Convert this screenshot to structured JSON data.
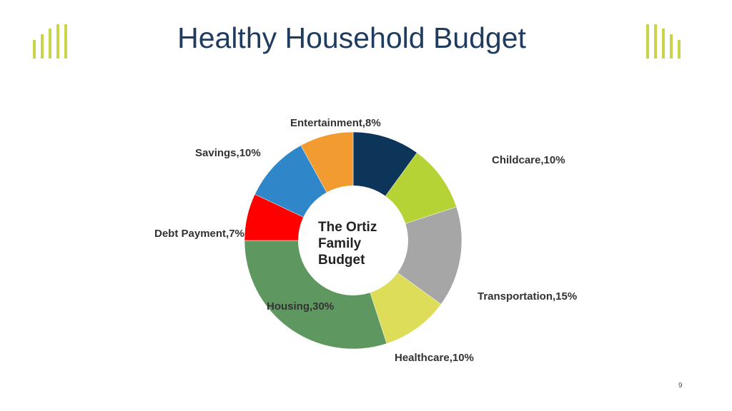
{
  "slide": {
    "title": "Healthy Household Budget",
    "page_number": "9",
    "accent_color": "#c8d44a",
    "title_color": "#1f3b5e"
  },
  "logo_icon": "bar-chart-logo-icon",
  "chart_data": {
    "type": "pie",
    "donut": true,
    "center_text": [
      "The Ortiz",
      "Family",
      "Budget"
    ],
    "slices": [
      {
        "label": "",
        "value": 10,
        "color": "#0d3459"
      },
      {
        "label": "Childcare,10%",
        "value": 10,
        "color": "#b5d334"
      },
      {
        "label": "Transportation,15%",
        "value": 15,
        "color": "#a6a6a6"
      },
      {
        "label": "Healthcare,10%",
        "value": 10,
        "color": "#dddd5a"
      },
      {
        "label": "Housing,30%",
        "value": 30,
        "color": "#5f9760"
      },
      {
        "label": "Debt Payment,7%",
        "value": 7,
        "color": "#ff0000"
      },
      {
        "label": "Savings,10%",
        "value": 10,
        "color": "#2f86c8"
      },
      {
        "label": "Entertainment,8%",
        "value": 8,
        "color": "#f29b30"
      }
    ]
  }
}
